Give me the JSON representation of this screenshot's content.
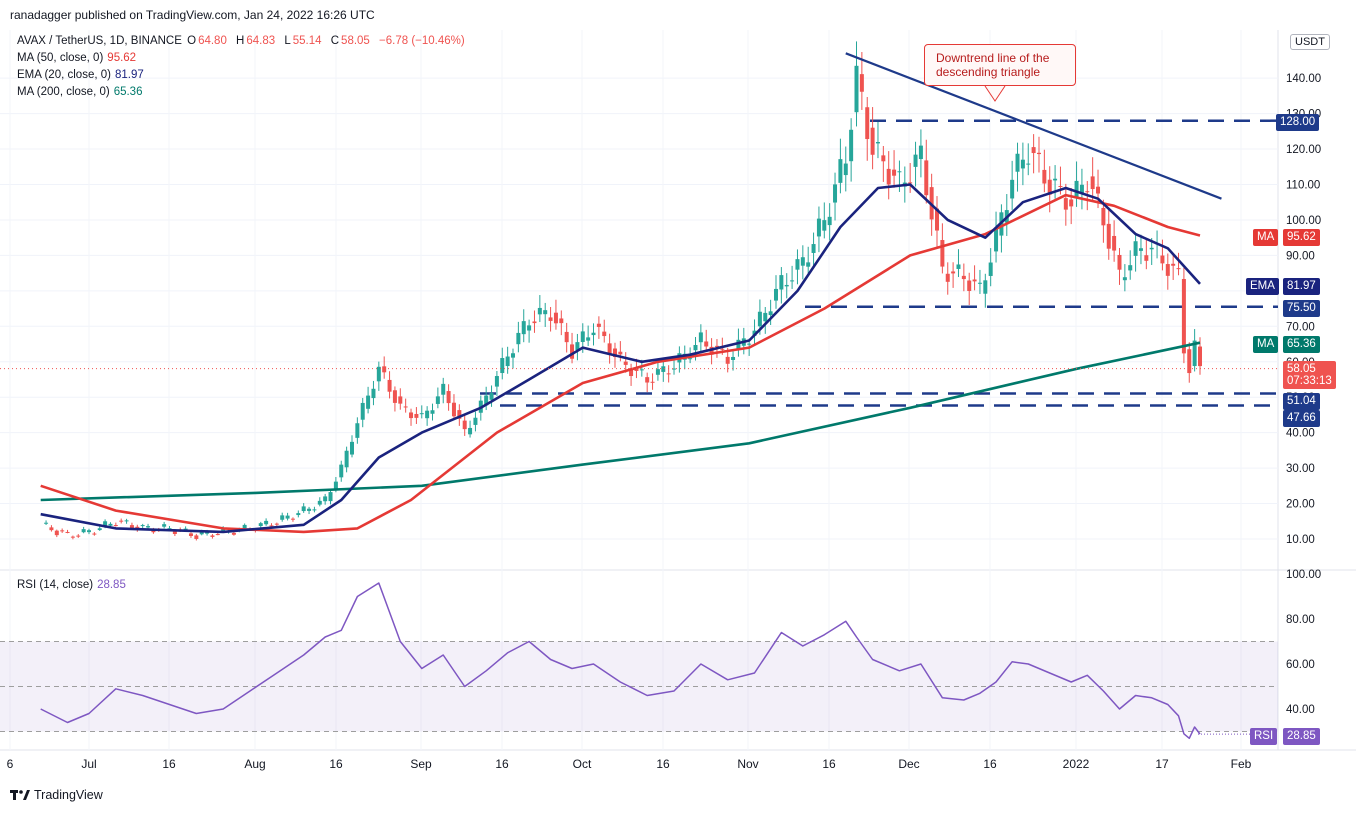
{
  "header": {
    "publisher": "ranadagger published on TradingView.com, Jan 24, 2022 16:26 UTC"
  },
  "symbol": {
    "title": "AVAX / TetherUS, 1D, BINANCE",
    "open_label": "O",
    "open": "64.80",
    "high_label": "H",
    "high": "64.83",
    "low_label": "L",
    "low": "55.14",
    "close_label": "C",
    "close": "58.05",
    "change": "−6.78 (−10.46%)"
  },
  "indicators": {
    "ma50": {
      "label": "MA (50, close, 0)",
      "value": "95.62",
      "color": "#e53935"
    },
    "ema20": {
      "label": "EMA (20, close, 0)",
      "value": "81.97",
      "color": "#1a237e"
    },
    "ma200": {
      "label": "MA (200, close, 0)",
      "value": "65.36",
      "color": "#00796b"
    },
    "rsi": {
      "label": "RSI (14, close)",
      "value": "28.85",
      "color": "#7e57c2"
    }
  },
  "annotation": {
    "line1": "Downtrend line of the",
    "line2": "descending triangle"
  },
  "currency_badge": "USDT",
  "axis_tags": {
    "ma_label": "MA",
    "ema_label": "EMA",
    "rsi_label": "RSI",
    "ma50_value": "95.62",
    "ema20_value": "81.97",
    "ma200_value": "65.36",
    "last_price": "58.05",
    "countdown": "07:33:13",
    "lvl_128": "128.00",
    "lvl_75": "75.50",
    "lvl_51": "51.04",
    "lvl_47": "47.66",
    "rsi_value": "28.85"
  },
  "footer": {
    "brand": "TradingView"
  },
  "chart_data": {
    "type": "candlestick",
    "title": "AVAX / TetherUS, 1D, BINANCE",
    "price_axis": {
      "ticks": [
        "10.00",
        "20.00",
        "30.00",
        "40.00",
        "50.00",
        "60.00",
        "70.00",
        "80.00",
        "90.00",
        "100.00",
        "110.00",
        "120.00",
        "130.00",
        "140.00"
      ],
      "range": [
        0,
        150
      ]
    },
    "time_axis": {
      "ticks": [
        "6",
        "Jul",
        "16",
        "Aug",
        "16",
        "Sep",
        "16",
        "Oct",
        "16",
        "Nov",
        "16",
        "Dec",
        "16",
        "2022",
        "17",
        "Feb"
      ]
    },
    "horizontal_levels": [
      128.0,
      75.5,
      51.04,
      47.66
    ],
    "downtrend_line": {
      "from": [
        "Nov 19",
        147
      ],
      "to": [
        "Jan 28",
        106
      ]
    },
    "price_path": [
      [
        "Jun 22",
        14
      ],
      [
        "Jun 27",
        11
      ],
      [
        "Jul 1",
        12
      ],
      [
        "Jul 6",
        15
      ],
      [
        "Jul 11",
        13
      ],
      [
        "Jul 16",
        13
      ],
      [
        "Jul 21",
        11
      ],
      [
        "Jul 26",
        12
      ],
      [
        "Jul 31",
        13
      ],
      [
        "Aug 5",
        15
      ],
      [
        "Aug 10",
        18
      ],
      [
        "Aug 14",
        21
      ],
      [
        "Aug 17",
        30
      ],
      [
        "Aug 20",
        43
      ],
      [
        "Aug 24",
        58
      ],
      [
        "Aug 28",
        47
      ],
      [
        "Sep 1",
        44
      ],
      [
        "Sep 5",
        52
      ],
      [
        "Sep 9",
        40
      ],
      [
        "Sep 13",
        50
      ],
      [
        "Sep 17",
        62
      ],
      [
        "Sep 21",
        72
      ],
      [
        "Sep 25",
        74
      ],
      [
        "Sep 29",
        63
      ],
      [
        "Oct 3",
        70
      ],
      [
        "Oct 8",
        60
      ],
      [
        "Oct 13",
        55
      ],
      [
        "Oct 18",
        59
      ],
      [
        "Oct 23",
        66
      ],
      [
        "Oct 28",
        61
      ],
      [
        "Nov 2",
        69
      ],
      [
        "Nov 7",
        82
      ],
      [
        "Nov 11",
        88
      ],
      [
        "Nov 15",
        100
      ],
      [
        "Nov 19",
        118
      ],
      [
        "Nov 21",
        140
      ],
      [
        "Nov 24",
        120
      ],
      [
        "Nov 29",
        110
      ],
      [
        "Dec 3",
        118
      ],
      [
        "Dec 7",
        86
      ],
      [
        "Dec 11",
        84
      ],
      [
        "Dec 14",
        80
      ],
      [
        "Dec 17",
        95
      ],
      [
        "Dec 20",
        112
      ],
      [
        "Dec 23",
        120
      ],
      [
        "Dec 27",
        110
      ],
      [
        "Dec 31",
        105
      ],
      [
        "Jan 3",
        112
      ],
      [
        "Jan 6",
        100
      ],
      [
        "Jan 9",
        84
      ],
      [
        "Jan 12",
        91
      ],
      [
        "Jan 15",
        92
      ],
      [
        "Jan 18",
        87
      ],
      [
        "Jan 20",
        84
      ],
      [
        "Jan 21",
        64
      ],
      [
        "Jan 22",
        58
      ],
      [
        "Jan 23",
        64
      ],
      [
        "Jan 24",
        58.05
      ]
    ],
    "ema20": [
      [
        "Jun 22",
        17
      ],
      [
        "Jul 6",
        13
      ],
      [
        "Jul 26",
        12
      ],
      [
        "Aug 10",
        14
      ],
      [
        "Aug 17",
        21
      ],
      [
        "Aug 24",
        33
      ],
      [
        "Sep 1",
        40
      ],
      [
        "Sep 12",
        47
      ],
      [
        "Sep 21",
        55
      ],
      [
        "Oct 1",
        64
      ],
      [
        "Oct 12",
        60
      ],
      [
        "Oct 21",
        62
      ],
      [
        "Nov 1",
        66
      ],
      [
        "Nov 10",
        80
      ],
      [
        "Nov 18",
        98
      ],
      [
        "Nov 25",
        109
      ],
      [
        "Dec 1",
        110
      ],
      [
        "Dec 8",
        100
      ],
      [
        "Dec 15",
        95
      ],
      [
        "Dec 22",
        105
      ],
      [
        "Dec 30",
        109
      ],
      [
        "Jan 5",
        106
      ],
      [
        "Jan 12",
        96
      ],
      [
        "Jan 18",
        92
      ],
      [
        "Jan 24",
        81.97
      ]
    ],
    "ma50": [
      [
        "Jun 22",
        25
      ],
      [
        "Jul 6",
        18
      ],
      [
        "Jul 26",
        13
      ],
      [
        "Aug 10",
        12
      ],
      [
        "Aug 20",
        13
      ],
      [
        "Aug 30",
        21
      ],
      [
        "Sep 15",
        40
      ],
      [
        "Oct 1",
        54
      ],
      [
        "Oct 15",
        60
      ],
      [
        "Nov 1",
        64
      ],
      [
        "Nov 15",
        75
      ],
      [
        "Dec 1",
        90
      ],
      [
        "Dec 15",
        96
      ],
      [
        "Dec 30",
        107
      ],
      [
        "Jan 8",
        104
      ],
      [
        "Jan 18",
        98
      ],
      [
        "Jan 24",
        95.62
      ]
    ],
    "ma200": [
      [
        "Jun 22",
        21
      ],
      [
        "Aug 1",
        23
      ],
      [
        "Sep 1",
        25
      ],
      [
        "Oct 1",
        31
      ],
      [
        "Nov 1",
        37
      ],
      [
        "Dec 1",
        47
      ],
      [
        "Jan 1",
        58
      ],
      [
        "Jan 24",
        65.36
      ]
    ],
    "rsi": {
      "axis_ticks": [
        "40.00",
        "60.00",
        "80.00",
        "100.00"
      ],
      "range": [
        25,
        102
      ],
      "bands": [
        30,
        50,
        70
      ],
      "series": [
        [
          "Jun 22",
          40
        ],
        [
          "Jun 27",
          34
        ],
        [
          "Jul 1",
          38
        ],
        [
          "Jul 6",
          49
        ],
        [
          "Jul 11",
          46
        ],
        [
          "Jul 16",
          42
        ],
        [
          "Jul 21",
          38
        ],
        [
          "Jul 26",
          40
        ],
        [
          "Jul 31",
          48
        ],
        [
          "Aug 5",
          56
        ],
        [
          "Aug 10",
          64
        ],
        [
          "Aug 14",
          72
        ],
        [
          "Aug 17",
          75
        ],
        [
          "Aug 20",
          90
        ],
        [
          "Aug 24",
          96
        ],
        [
          "Aug 28",
          70
        ],
        [
          "Sep 1",
          58
        ],
        [
          "Sep 5",
          64
        ],
        [
          "Sep 9",
          50
        ],
        [
          "Sep 13",
          57
        ],
        [
          "Sep 17",
          65
        ],
        [
          "Sep 21",
          70
        ],
        [
          "Sep 25",
          62
        ],
        [
          "Sep 29",
          58
        ],
        [
          "Oct 3",
          60
        ],
        [
          "Oct 8",
          52
        ],
        [
          "Oct 13",
          46
        ],
        [
          "Oct 18",
          48
        ],
        [
          "Oct 23",
          60
        ],
        [
          "Oct 28",
          53
        ],
        [
          "Nov 2",
          56
        ],
        [
          "Nov 7",
          74
        ],
        [
          "Nov 11",
          68
        ],
        [
          "Nov 15",
          73
        ],
        [
          "Nov 19",
          79
        ],
        [
          "Nov 21",
          72
        ],
        [
          "Nov 24",
          62
        ],
        [
          "Nov 29",
          57
        ],
        [
          "Dec 3",
          60
        ],
        [
          "Dec 7",
          45
        ],
        [
          "Dec 11",
          44
        ],
        [
          "Dec 14",
          47
        ],
        [
          "Dec 17",
          52
        ],
        [
          "Dec 20",
          61
        ],
        [
          "Dec 23",
          60
        ],
        [
          "Dec 27",
          56
        ],
        [
          "Dec 31",
          52
        ],
        [
          "Jan 3",
          55
        ],
        [
          "Jan 6",
          48
        ],
        [
          "Jan 9",
          40
        ],
        [
          "Jan 12",
          46
        ],
        [
          "Jan 15",
          45
        ],
        [
          "Jan 18",
          42
        ],
        [
          "Jan 20",
          37
        ],
        [
          "Jan 21",
          29
        ],
        [
          "Jan 22",
          27
        ],
        [
          "Jan 23",
          32
        ],
        [
          "Jan 24",
          28.85
        ]
      ]
    }
  }
}
